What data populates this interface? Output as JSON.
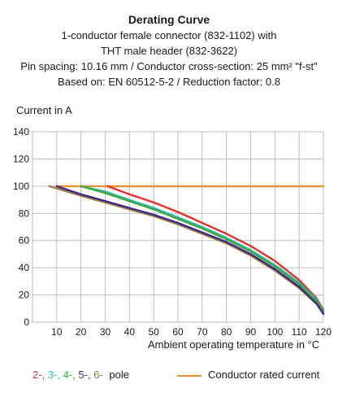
{
  "header": {
    "title": "Derating Curve",
    "lines": [
      "1-conductor female connector (832-1102) with",
      "THT male header (832-3622)",
      "Pin spacing: 10.16 mm / Conductor cross-section: 25 mm² \"f-st\"",
      "Based on: EN 60512-5-2 / Reduction factor: 0.8"
    ]
  },
  "legend": {
    "poles": [
      {
        "text": "2-,",
        "color": "#e8302a"
      },
      {
        "text": "3-,",
        "color": "#36b8c4"
      },
      {
        "text": "4-,",
        "color": "#3aa83a"
      },
      {
        "text": "5-,",
        "color": "#3a2a8c"
      },
      {
        "text": "6-",
        "color": "#a07a3a"
      }
    ],
    "pole_word": "pole",
    "rated_label": "Conductor rated current",
    "rated_color": "#e8912f"
  },
  "chart_data": {
    "type": "line",
    "xlabel": "Ambient operating temperature in °C",
    "ylabel": "Current in A",
    "xlim": [
      0,
      120
    ],
    "ylim": [
      0,
      140
    ],
    "x_ticks": [
      10,
      20,
      30,
      40,
      50,
      60,
      70,
      80,
      90,
      100,
      110,
      120
    ],
    "y_ticks": [
      0,
      20,
      40,
      60,
      80,
      100,
      120,
      140
    ],
    "grid": true,
    "series": [
      {
        "name": "Conductor rated current",
        "color": "#e8912f",
        "points": [
          [
            10,
            100
          ],
          [
            120,
            100
          ]
        ]
      },
      {
        "name": "6-",
        "color": "#a07a3a",
        "points": [
          [
            7,
            100
          ],
          [
            20,
            93
          ],
          [
            30,
            88
          ],
          [
            40,
            83
          ],
          [
            50,
            78
          ],
          [
            60,
            72
          ],
          [
            70,
            65
          ],
          [
            80,
            58
          ],
          [
            90,
            49
          ],
          [
            100,
            38
          ],
          [
            110,
            25
          ],
          [
            118,
            12
          ],
          [
            120,
            7
          ]
        ]
      },
      {
        "name": "2-",
        "color": "#e8302a",
        "points": [
          [
            31,
            100
          ],
          [
            40,
            94
          ],
          [
            50,
            88
          ],
          [
            60,
            81
          ],
          [
            70,
            73
          ],
          [
            80,
            65
          ],
          [
            90,
            56
          ],
          [
            100,
            45
          ],
          [
            110,
            31
          ],
          [
            117,
            18
          ],
          [
            120,
            9
          ]
        ]
      },
      {
        "name": "3-",
        "color": "#36b8c4",
        "points": [
          [
            20,
            100
          ],
          [
            30,
            96
          ],
          [
            40,
            90
          ],
          [
            50,
            84
          ],
          [
            60,
            77
          ],
          [
            70,
            70
          ],
          [
            80,
            62
          ],
          [
            90,
            53
          ],
          [
            100,
            42
          ],
          [
            110,
            29
          ],
          [
            117,
            17
          ],
          [
            120,
            8
          ]
        ]
      },
      {
        "name": "4-",
        "color": "#3aa83a",
        "points": [
          [
            20,
            100
          ],
          [
            30,
            95
          ],
          [
            40,
            89
          ],
          [
            50,
            83
          ],
          [
            60,
            76
          ],
          [
            70,
            69
          ],
          [
            80,
            61
          ],
          [
            90,
            52
          ],
          [
            100,
            41
          ],
          [
            110,
            28
          ],
          [
            117,
            16
          ],
          [
            120,
            8
          ]
        ]
      },
      {
        "name": "5-",
        "color": "#3a2a8c",
        "points": [
          [
            10,
            100
          ],
          [
            20,
            94
          ],
          [
            30,
            89
          ],
          [
            40,
            84
          ],
          [
            50,
            79
          ],
          [
            60,
            73
          ],
          [
            70,
            66
          ],
          [
            80,
            59
          ],
          [
            90,
            50
          ],
          [
            100,
            39
          ],
          [
            110,
            26
          ],
          [
            117,
            14
          ],
          [
            120,
            6
          ]
        ]
      }
    ]
  }
}
